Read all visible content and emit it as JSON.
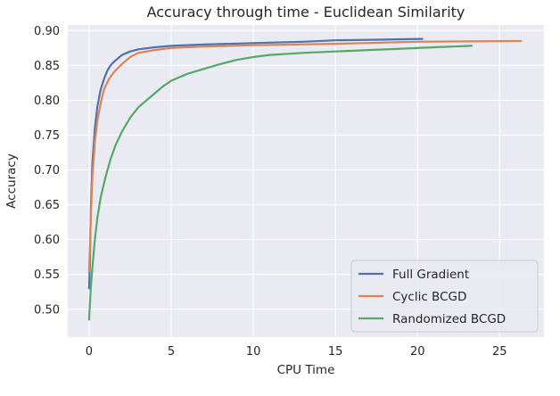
{
  "chart_data": {
    "type": "line",
    "title": "Accuracy through time - Euclidean Similarity",
    "xlabel": "CPU Time",
    "ylabel": "Accuracy",
    "xlim": [
      -1.3,
      27.7
    ],
    "ylim": [
      0.46,
      0.908
    ],
    "xticks": [
      0,
      5,
      10,
      15,
      20,
      25
    ],
    "yticks": [
      0.5,
      0.55,
      0.6,
      0.65,
      0.7,
      0.75,
      0.8,
      0.85,
      0.9
    ],
    "xtick_labels": [
      "0",
      "5",
      "10",
      "15",
      "20",
      "25"
    ],
    "ytick_labels": [
      "0.50",
      "0.55",
      "0.60",
      "0.65",
      "0.70",
      "0.75",
      "0.80",
      "0.85",
      "0.90"
    ],
    "grid": true,
    "background": "#eaeaf2",
    "legend_position": "lower-right",
    "series": [
      {
        "name": "Full Gradient",
        "color": "#4c72b0",
        "x": [
          0.0,
          0.05,
          0.1,
          0.2,
          0.35,
          0.5,
          0.7,
          0.9,
          1.1,
          1.3,
          1.6,
          2.0,
          2.5,
          3.0,
          4.0,
          5.0,
          7.0,
          10.0,
          13.0,
          15.0,
          18.0,
          20.3
        ],
        "y": [
          0.53,
          0.57,
          0.64,
          0.71,
          0.76,
          0.79,
          0.815,
          0.83,
          0.842,
          0.85,
          0.857,
          0.865,
          0.87,
          0.873,
          0.876,
          0.878,
          0.88,
          0.882,
          0.884,
          0.886,
          0.887,
          0.888
        ]
      },
      {
        "name": "Cyclic BCGD",
        "color": "#dd8452",
        "x": [
          0.0,
          0.05,
          0.1,
          0.2,
          0.35,
          0.5,
          0.7,
          0.9,
          1.2,
          1.5,
          2.0,
          2.5,
          3.0,
          4.0,
          5.0,
          7.0,
          10.0,
          15.0,
          20.0,
          26.3
        ],
        "y": [
          0.555,
          0.59,
          0.63,
          0.69,
          0.74,
          0.77,
          0.795,
          0.815,
          0.83,
          0.84,
          0.852,
          0.862,
          0.868,
          0.872,
          0.875,
          0.877,
          0.879,
          0.881,
          0.884,
          0.885
        ]
      },
      {
        "name": "Randomized BCGD",
        "color": "#55a868",
        "x": [
          0.0,
          0.1,
          0.2,
          0.35,
          0.5,
          0.7,
          1.0,
          1.3,
          1.6,
          2.0,
          2.5,
          3.0,
          3.5,
          4.0,
          4.5,
          5.0,
          6.0,
          7.0,
          8.0,
          9.0,
          10.0,
          11.0,
          13.0,
          15.0,
          17.0,
          19.0,
          21.0,
          23.3
        ],
        "y": [
          0.485,
          0.53,
          0.56,
          0.6,
          0.63,
          0.66,
          0.69,
          0.715,
          0.735,
          0.755,
          0.775,
          0.79,
          0.8,
          0.81,
          0.82,
          0.828,
          0.838,
          0.845,
          0.852,
          0.858,
          0.862,
          0.865,
          0.868,
          0.87,
          0.872,
          0.874,
          0.876,
          0.878
        ]
      }
    ]
  }
}
